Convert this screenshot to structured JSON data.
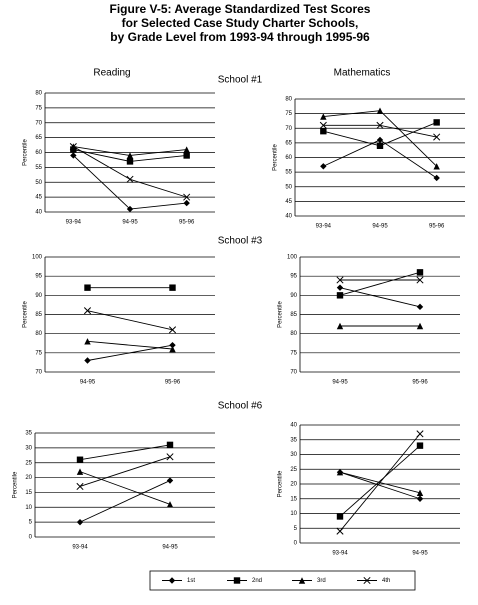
{
  "figure_title": [
    "Figure V-5:  Average Standardized Test Scores",
    "for Selected Case Study Charter Schools,",
    "by Grade Level from 1993-94 through 1995-96"
  ],
  "column_headers": [
    "Reading",
    "Mathematics"
  ],
  "school_labels": [
    "School #1",
    "School #3",
    "School #6"
  ],
  "chart_data": [
    {
      "type": "line",
      "y_label": "Percentile",
      "categories": [
        "93-94",
        "94-95",
        "95-96"
      ],
      "ylim": [
        40,
        80
      ],
      "yticks": [
        40,
        45,
        50,
        55,
        60,
        65,
        70,
        75,
        80
      ],
      "grid": true,
      "series": [
        {
          "name": "1st",
          "color": "#000000",
          "marker": "diamond",
          "values": [
            59,
            41,
            43
          ]
        },
        {
          "name": "2nd",
          "color": "#000000",
          "marker": "square",
          "values": [
            61,
            57,
            59
          ]
        },
        {
          "name": "3rd",
          "color": "#000000",
          "marker": "triangle",
          "values": [
            62,
            59,
            61
          ]
        },
        {
          "name": "4th",
          "color": "#000000",
          "marker": "x",
          "values": [
            62,
            51,
            45
          ]
        }
      ]
    },
    {
      "type": "line",
      "y_label": "Percentile",
      "categories": [
        "93-94",
        "94-95",
        "95-96"
      ],
      "ylim": [
        40,
        80
      ],
      "yticks": [
        40,
        45,
        50,
        55,
        60,
        65,
        70,
        75,
        80
      ],
      "grid": true,
      "series": [
        {
          "name": "1st",
          "color": "#000000",
          "marker": "diamond",
          "values": [
            57,
            66,
            53
          ]
        },
        {
          "name": "2nd",
          "color": "#000000",
          "marker": "square",
          "values": [
            69,
            64,
            72
          ]
        },
        {
          "name": "3rd",
          "color": "#000000",
          "marker": "triangle",
          "values": [
            74,
            76,
            57
          ]
        },
        {
          "name": "4th",
          "color": "#000000",
          "marker": "x",
          "values": [
            71,
            71,
            67
          ]
        }
      ]
    },
    {
      "type": "line",
      "y_label": "Percentile",
      "categories": [
        "94-95",
        "95-96"
      ],
      "ylim": [
        70,
        100
      ],
      "yticks": [
        70,
        75,
        80,
        85,
        90,
        95,
        100
      ],
      "grid": true,
      "series": [
        {
          "name": "1st",
          "color": "#000000",
          "marker": "diamond",
          "values": [
            73,
            77
          ]
        },
        {
          "name": "2nd",
          "color": "#000000",
          "marker": "square",
          "values": [
            92,
            92
          ]
        },
        {
          "name": "3rd",
          "color": "#000000",
          "marker": "triangle",
          "values": [
            78,
            76
          ]
        },
        {
          "name": "4th",
          "color": "#000000",
          "marker": "x",
          "values": [
            86,
            81
          ]
        }
      ]
    },
    {
      "type": "line",
      "y_label": "Percentile",
      "categories": [
        "94-95",
        "95-96"
      ],
      "ylim": [
        70,
        100
      ],
      "yticks": [
        70,
        75,
        80,
        85,
        90,
        95,
        100
      ],
      "grid": true,
      "series": [
        {
          "name": "1st",
          "color": "#000000",
          "marker": "diamond",
          "values": [
            92,
            87
          ]
        },
        {
          "name": "2nd",
          "color": "#000000",
          "marker": "square",
          "values": [
            90,
            96
          ]
        },
        {
          "name": "3rd",
          "color": "#000000",
          "marker": "triangle",
          "values": [
            82,
            82
          ]
        },
        {
          "name": "4th",
          "color": "#000000",
          "marker": "x",
          "values": [
            94,
            94
          ]
        }
      ]
    },
    {
      "type": "line",
      "y_label": "Percentile",
      "categories": [
        "93-94",
        "94-95"
      ],
      "ylim": [
        0,
        35
      ],
      "yticks": [
        0,
        5,
        10,
        15,
        20,
        25,
        30,
        35
      ],
      "grid": true,
      "series": [
        {
          "name": "1st",
          "color": "#000000",
          "marker": "diamond",
          "values": [
            5,
            19
          ]
        },
        {
          "name": "2nd",
          "color": "#000000",
          "marker": "square",
          "values": [
            26,
            31
          ]
        },
        {
          "name": "3rd",
          "color": "#000000",
          "marker": "triangle",
          "values": [
            22,
            11
          ]
        },
        {
          "name": "4th",
          "color": "#000000",
          "marker": "x",
          "values": [
            17,
            27
          ]
        }
      ]
    },
    {
      "type": "line",
      "y_label": "Percentile",
      "categories": [
        "93-94",
        "94-95"
      ],
      "ylim": [
        0,
        40
      ],
      "yticks": [
        0,
        5,
        10,
        15,
        20,
        25,
        30,
        35,
        40
      ],
      "grid": true,
      "series": [
        {
          "name": "1st",
          "color": "#000000",
          "marker": "diamond",
          "values": [
            24,
            15
          ]
        },
        {
          "name": "2nd",
          "color": "#000000",
          "marker": "square",
          "values": [
            9,
            33
          ]
        },
        {
          "name": "3rd",
          "color": "#000000",
          "marker": "triangle",
          "values": [
            24,
            17
          ]
        },
        {
          "name": "4th",
          "color": "#000000",
          "marker": "x",
          "values": [
            4,
            37
          ]
        }
      ]
    }
  ]
}
